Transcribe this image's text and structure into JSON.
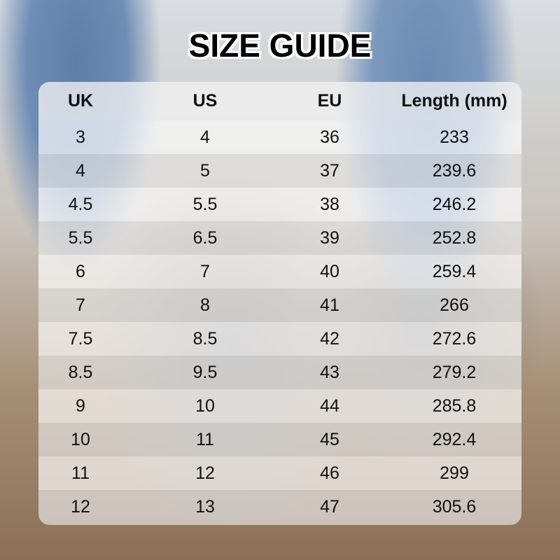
{
  "title": "SIZE GUIDE",
  "table": {
    "headers": [
      "UK",
      "US",
      "EU",
      "Length (mm)"
    ],
    "rows": [
      [
        "3",
        "4",
        "36",
        "233"
      ],
      [
        "4",
        "5",
        "37",
        "239.6"
      ],
      [
        "4.5",
        "5.5",
        "38",
        "246.2"
      ],
      [
        "5.5",
        "6.5",
        "39",
        "252.8"
      ],
      [
        "6",
        "7",
        "40",
        "259.4"
      ],
      [
        "7",
        "8",
        "41",
        "266"
      ],
      [
        "7.5",
        "8.5",
        "42",
        "272.6"
      ],
      [
        "8.5",
        "9.5",
        "43",
        "279.2"
      ],
      [
        "9",
        "10",
        "44",
        "285.8"
      ],
      [
        "10",
        "11",
        "45",
        "292.4"
      ],
      [
        "11",
        "12",
        "46",
        "299"
      ],
      [
        "12",
        "13",
        "47",
        "305.6"
      ]
    ]
  }
}
